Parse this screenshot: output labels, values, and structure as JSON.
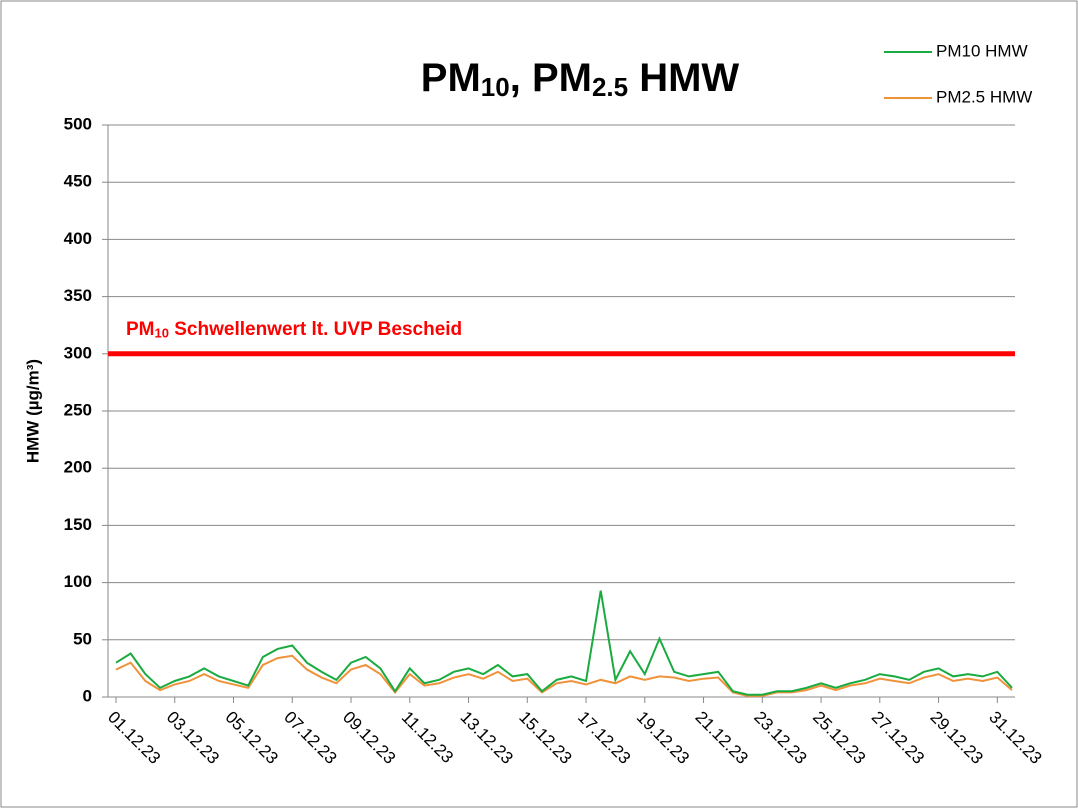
{
  "chart_data": {
    "type": "line",
    "title": "PM10, PM2.5 HMW",
    "y_label": "HMW (µg/m³)",
    "categories": [
      "01.12.23",
      null,
      null,
      null,
      "03.12.23",
      null,
      null,
      null,
      "05.12.23",
      null,
      null,
      null,
      "07.12.23",
      null,
      null,
      null,
      "09.12.23",
      null,
      null,
      null,
      "11.12.23",
      null,
      null,
      null,
      "13.12.23",
      null,
      null,
      null,
      "15.12.23",
      null,
      null,
      null,
      "17.12.23",
      null,
      null,
      null,
      "19.12.23",
      null,
      null,
      null,
      "21.12.23",
      null,
      null,
      null,
      "23.12.23",
      null,
      null,
      null,
      "25.12.23",
      null,
      null,
      null,
      "27.12.23",
      null,
      null,
      null,
      "29.12.23",
      null,
      null,
      null,
      "31.12.23",
      null
    ],
    "series": [
      {
        "name": "PM10 HMW",
        "color": "#1aab40",
        "values": [
          30,
          38,
          20,
          8,
          14,
          18,
          25,
          18,
          14,
          10,
          35,
          42,
          45,
          30,
          22,
          15,
          30,
          35,
          25,
          5,
          25,
          12,
          15,
          22,
          25,
          20,
          28,
          18,
          20,
          5,
          15,
          18,
          14,
          93,
          15,
          40,
          20,
          51,
          22,
          18,
          20,
          22,
          5,
          2,
          2,
          5,
          5,
          8,
          12,
          8,
          12,
          15,
          20,
          18,
          15,
          22,
          25,
          18,
          20,
          18,
          22,
          8
        ]
      },
      {
        "name": "PM2.5 HMW",
        "color": "#f0923a",
        "values": [
          24,
          30,
          14,
          6,
          11,
          14,
          20,
          14,
          11,
          8,
          28,
          34,
          36,
          24,
          17,
          12,
          24,
          28,
          20,
          4,
          20,
          10,
          12,
          17,
          20,
          16,
          22,
          14,
          16,
          4,
          12,
          14,
          11,
          15,
          12,
          18,
          15,
          18,
          17,
          14,
          16,
          17,
          4,
          1,
          1,
          4,
          4,
          6,
          10,
          6,
          10,
          12,
          16,
          14,
          12,
          17,
          20,
          14,
          16,
          14,
          17,
          6
        ]
      }
    ],
    "threshold": {
      "value": 300,
      "label": "PM10 Schwellenwert lt. UVP Bescheid",
      "color": "#ff0000"
    },
    "ylim": [
      0,
      500
    ],
    "yticks": [
      0,
      50,
      100,
      150,
      200,
      250,
      300,
      350,
      400,
      450,
      500
    ],
    "grid": true,
    "legend": "top-right"
  }
}
